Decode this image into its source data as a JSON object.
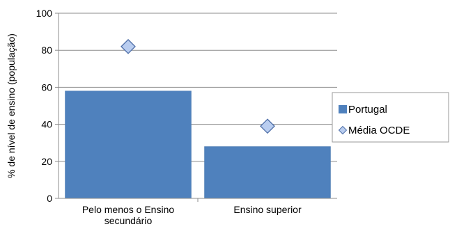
{
  "chart_data": {
    "type": "bar",
    "title": "",
    "xlabel": "",
    "ylabel": "% de nível de ensino (população)",
    "ylim": [
      0,
      100
    ],
    "yticks": [
      0,
      20,
      40,
      60,
      80,
      100
    ],
    "grid": true,
    "legend_position": "right",
    "categories": [
      [
        "Pelo menos o Ensino",
        "secundário"
      ],
      [
        "Ensino superior"
      ]
    ],
    "series": [
      {
        "name": "Portugal",
        "kind": "bar",
        "color": "#4f81bd",
        "values": [
          58,
          28
        ]
      },
      {
        "name": "Média OCDE",
        "kind": "marker",
        "marker": "diamond",
        "color": "#b9cdf0",
        "values": [
          82,
          39
        ]
      }
    ]
  }
}
